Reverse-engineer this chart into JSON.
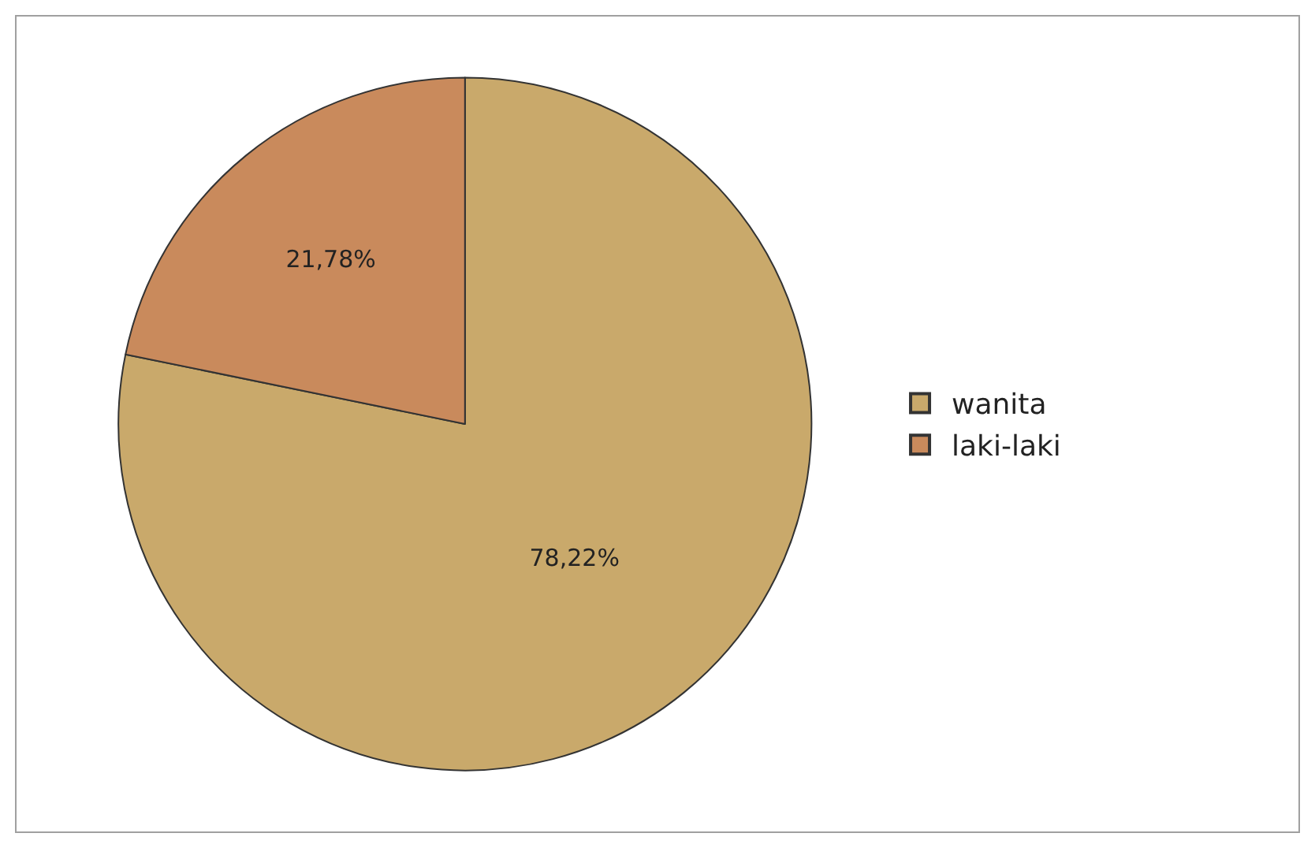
{
  "chart_data": {
    "type": "pie",
    "categories": [
      "wanita",
      "laki-laki"
    ],
    "values": [
      78.22,
      21.78
    ],
    "colors": [
      "#c9a96b",
      "#c98a5c"
    ],
    "value_labels": [
      "78,22%",
      "21,78%"
    ],
    "legend": "right"
  }
}
